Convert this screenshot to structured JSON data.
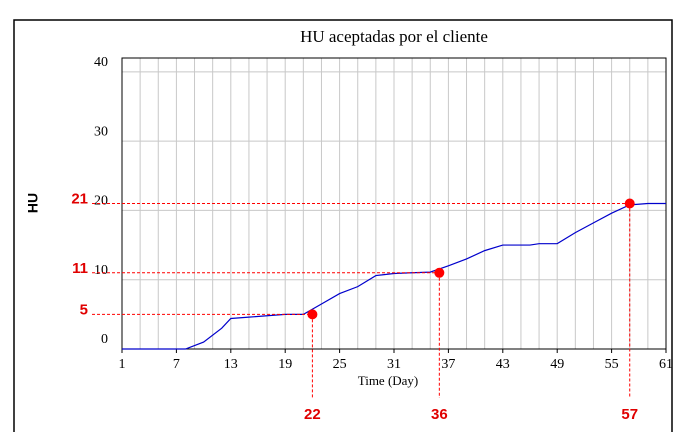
{
  "chart_data": {
    "type": "line",
    "title": "HU aceptadas por el cliente",
    "x_label": "Time (Day)",
    "y_label": "HU",
    "x": [
      1,
      8,
      10,
      12,
      13,
      15,
      17,
      19,
      21,
      23,
      25,
      27,
      29,
      31,
      33,
      35,
      37,
      39,
      41,
      43,
      46,
      47,
      49,
      51,
      53,
      55,
      57,
      59,
      61
    ],
    "series": [
      {
        "color": "#0000cc",
        "values": [
          0,
          0,
          1,
          3,
          4.4,
          4.6,
          4.8,
          5,
          5,
          6.5,
          8,
          9,
          10.6,
          10.9,
          11,
          11.1,
          12,
          13,
          14.2,
          15,
          15,
          15.2,
          15.2,
          16.8,
          18.2,
          19.6,
          20.8,
          21,
          21
        ]
      }
    ],
    "xlim": [
      1,
      61
    ],
    "xticks": [
      1,
      7,
      13,
      19,
      25,
      31,
      37,
      43,
      49,
      55,
      61
    ],
    "xgrid": [
      1,
      3,
      5,
      7,
      9,
      11,
      13,
      15,
      17,
      19,
      21,
      23,
      25,
      27,
      29,
      31,
      33,
      35,
      37,
      39,
      41,
      43,
      45,
      47,
      49,
      51,
      53,
      55,
      57,
      59,
      61
    ],
    "ylim": [
      0,
      42
    ],
    "yticks": [
      0,
      10,
      20,
      30,
      40
    ],
    "grid": true,
    "annotations": [
      {
        "x": 22,
        "y": 5
      },
      {
        "x": 36,
        "y": 11
      },
      {
        "x": 57,
        "y": 21
      }
    ],
    "annotation_color": "#ff0000"
  }
}
